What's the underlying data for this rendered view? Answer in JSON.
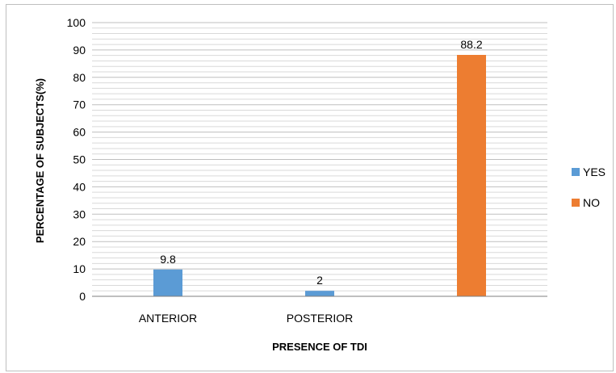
{
  "chart_data": {
    "type": "bar",
    "title": "",
    "xlabel": "PRESENCE OF TDI",
    "ylabel": "PERCENTAGE OF SUBJECTS(%)",
    "ylim": [
      0,
      100
    ],
    "y_ticks": [
      0,
      10,
      20,
      30,
      40,
      50,
      60,
      70,
      80,
      90,
      100
    ],
    "y_tick_labels": [
      "0",
      "10",
      "20",
      "30",
      "40",
      "50",
      "60",
      "70",
      "80",
      "90",
      "100"
    ],
    "minor_grid_step": 2,
    "grid": true,
    "legend_position": "right",
    "categories": [
      "ANTERIOR",
      "POSTERIOR",
      ""
    ],
    "series": [
      {
        "name": "YES",
        "color": "#5B9BD5",
        "values": [
          9.8,
          2,
          null
        ],
        "value_labels": [
          "9.8",
          "2",
          ""
        ]
      },
      {
        "name": "NO",
        "color": "#ED7D31",
        "values": [
          null,
          null,
          88.2
        ],
        "value_labels": [
          "",
          "",
          "88.2"
        ]
      }
    ]
  }
}
